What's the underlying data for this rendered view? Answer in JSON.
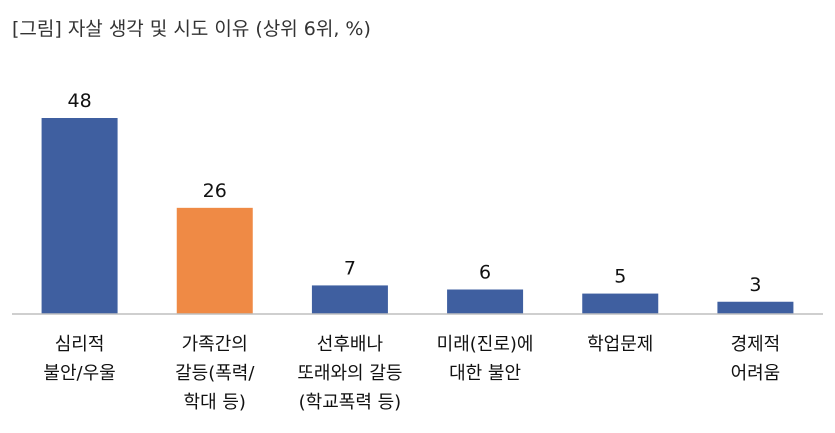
{
  "chart_data": {
    "type": "bar",
    "title": "[그림] 자살 생각 및 시도 이유 (상위 6위, %)",
    "categories": [
      "심리적\n불안/우울",
      "가족간의\n갈등(폭력/\n학대 등)",
      "선후배나\n또래와의 갈등\n(학교폭력 등)",
      "미래(진로)에\n대한 불안",
      "학업문제",
      "경제적\n어려움"
    ],
    "values": [
      48,
      26,
      7,
      6,
      5,
      3
    ],
    "value_labels": [
      "48",
      "26",
      "7",
      "6",
      "5",
      "3"
    ],
    "bar_colors": [
      "#3F5FA0",
      "#EF8A45",
      "#3F5FA0",
      "#3F5FA0",
      "#3F5FA0",
      "#3F5FA0"
    ],
    "ylim": [
      0,
      48
    ],
    "xlabel": "",
    "ylabel": "",
    "grid": false,
    "legend": "none"
  },
  "colors": {
    "primary_bar": "#3F5FA0",
    "highlight_bar": "#EF8A45",
    "axis": "#BFBFBF"
  }
}
